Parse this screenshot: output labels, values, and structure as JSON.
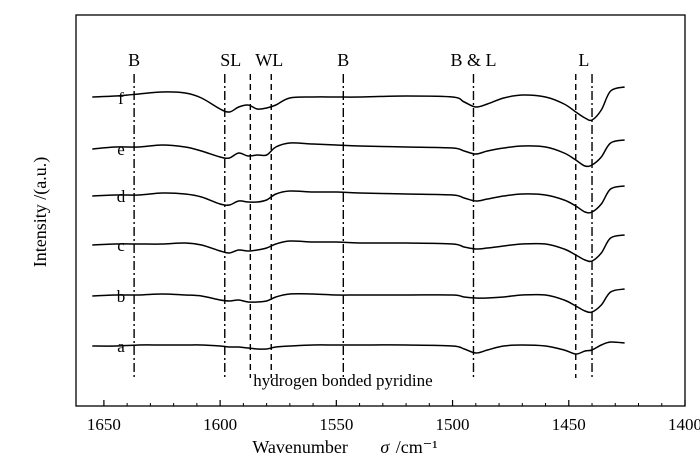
{
  "chart_data": {
    "type": "line",
    "xlabel_main": "Wavenumber",
    "xlabel_symbol": "σ",
    "xlabel_unit": "/cm⁻¹",
    "ylabel": "Intensity /(a.u.)",
    "xlim": [
      1662,
      1400
    ],
    "x_reversed": true,
    "x_ticks": [
      1650,
      1600,
      1550,
      1500,
      1450,
      1400
    ],
    "grid": false,
    "reference_lines": [
      {
        "x": 1637,
        "label": "B",
        "style": "dash-dot"
      },
      {
        "x": 1598,
        "label": "SL",
        "style": "dash-dot"
      },
      {
        "x": 1587,
        "label": "",
        "style": "dashed"
      },
      {
        "x": 1578,
        "label": "WL",
        "style": "dashed"
      },
      {
        "x": 1547,
        "label": "B",
        "style": "dash-dot"
      },
      {
        "x": 1491,
        "label": "B & L",
        "style": "dash-dot"
      },
      {
        "x": 1447,
        "label": "",
        "style": "dashed"
      },
      {
        "x": 1440,
        "label": "L",
        "style": "dash-dot"
      }
    ],
    "annotation": "hydrogen bonded pyridine",
    "x": [
      1655,
      1645,
      1635,
      1625,
      1615,
      1608,
      1600,
      1596,
      1592,
      1588,
      1584,
      1580,
      1576,
      1570,
      1560,
      1550,
      1540,
      1520,
      1500,
      1495,
      1490,
      1485,
      1478,
      1470,
      1460,
      1452,
      1447,
      1443,
      1440,
      1436,
      1432,
      1426
    ],
    "series": [
      {
        "name": "f",
        "values": [
          0.05,
          0.1,
          0.2,
          0.3,
          0.25,
          0.0,
          -0.55,
          -0.7,
          -0.45,
          -0.35,
          -0.55,
          -0.5,
          -0.35,
          0.0,
          0.05,
          0.05,
          0.05,
          0.1,
          0.05,
          -0.2,
          -0.45,
          -0.3,
          0.0,
          0.15,
          0.05,
          -0.3,
          -0.7,
          -1.0,
          -1.1,
          -0.6,
          0.35,
          0.55
        ]
      },
      {
        "name": "e",
        "values": [
          0.0,
          0.1,
          0.1,
          0.2,
          0.1,
          -0.1,
          -0.4,
          -0.45,
          -0.2,
          -0.35,
          -0.3,
          -0.3,
          0.1,
          0.3,
          0.25,
          0.2,
          0.15,
          0.1,
          0.05,
          -0.1,
          -0.25,
          -0.1,
          0.05,
          0.15,
          0.1,
          -0.2,
          -0.55,
          -0.85,
          -0.8,
          -0.4,
          0.3,
          0.45
        ]
      },
      {
        "name": "d",
        "values": [
          0.0,
          0.05,
          0.05,
          0.15,
          0.1,
          -0.05,
          -0.4,
          -0.45,
          -0.25,
          -0.3,
          -0.3,
          -0.2,
          0.1,
          0.25,
          0.2,
          0.2,
          0.15,
          0.1,
          0.05,
          -0.1,
          -0.25,
          -0.15,
          0.0,
          0.1,
          0.05,
          -0.2,
          -0.5,
          -0.8,
          -0.8,
          -0.4,
          0.35,
          0.5
        ]
      },
      {
        "name": "c",
        "values": [
          0.0,
          0.05,
          0.05,
          0.05,
          0.1,
          0.0,
          -0.3,
          -0.4,
          -0.25,
          -0.3,
          -0.25,
          -0.15,
          0.05,
          0.2,
          0.15,
          0.15,
          0.1,
          0.1,
          0.05,
          -0.1,
          -0.2,
          -0.15,
          -0.05,
          0.05,
          0.05,
          -0.2,
          -0.5,
          -0.75,
          -0.8,
          -0.4,
          0.35,
          0.5
        ]
      },
      {
        "name": "b",
        "values": [
          0.0,
          0.05,
          0.05,
          0.1,
          0.05,
          0.0,
          -0.2,
          -0.25,
          -0.2,
          -0.3,
          -0.3,
          -0.25,
          -0.05,
          0.1,
          0.1,
          0.05,
          0.05,
          0.05,
          0.05,
          -0.05,
          -0.1,
          -0.1,
          -0.05,
          0.05,
          0.05,
          -0.2,
          -0.5,
          -0.75,
          -0.8,
          -0.45,
          0.2,
          0.35
        ]
      },
      {
        "name": "a",
        "values": [
          0.0,
          0.0,
          0.05,
          0.05,
          0.05,
          0.05,
          0.0,
          -0.05,
          -0.05,
          -0.1,
          -0.15,
          -0.15,
          -0.05,
          0.0,
          0.05,
          0.05,
          0.05,
          0.05,
          0.0,
          -0.15,
          -0.35,
          -0.2,
          0.0,
          0.05,
          0.0,
          -0.2,
          -0.4,
          -0.25,
          -0.2,
          0.05,
          0.2,
          0.15
        ]
      }
    ]
  }
}
